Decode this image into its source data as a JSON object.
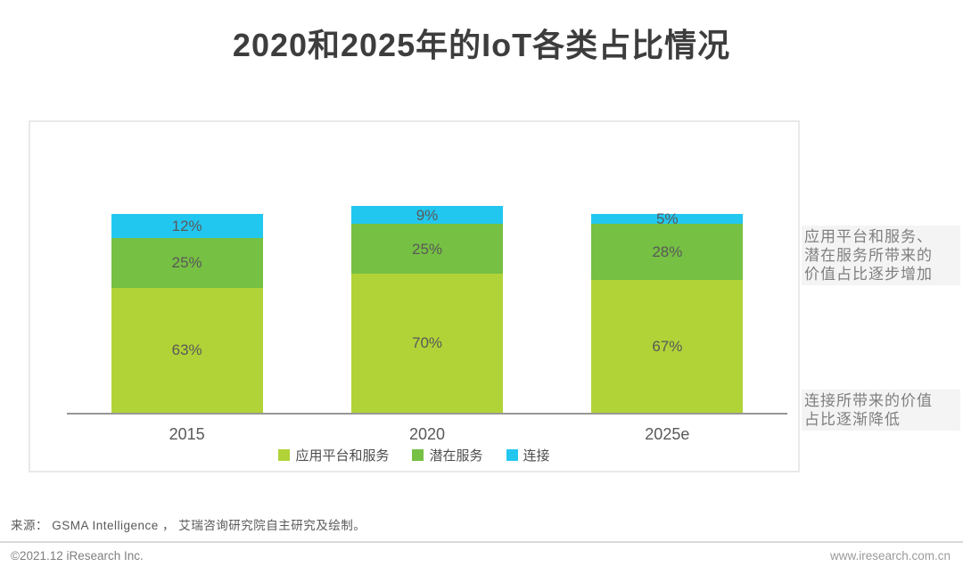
{
  "title": "2020和2025年的IoT各类占比情况",
  "colors": {
    "series_app_platform": "#b1d338",
    "series_latent_service": "#76c043",
    "series_connection": "#22c7f0",
    "title_text": "#3d3d3d",
    "label_text": "#595959",
    "annotation_bg": "#f4f4f4",
    "annotation_text": "#7f7f7f",
    "axis_line": "#979797",
    "frame_border": "#e9e9e9"
  },
  "chart_data": {
    "type": "bar",
    "stacked": true,
    "categories": [
      "2015",
      "2020",
      "2025e"
    ],
    "series": [
      {
        "name": "应用平台和服务",
        "color": "#b1d338",
        "values": [
          63,
          70,
          67
        ]
      },
      {
        "name": "潜在服务",
        "color": "#76c043",
        "values": [
          25,
          25,
          28
        ]
      },
      {
        "name": "连接",
        "color": "#22c7f0",
        "values": [
          12,
          9,
          5
        ]
      }
    ],
    "value_suffix": "%",
    "title": "2020和2025年的IoT各类占比情况",
    "xlabel": "",
    "ylabel": "",
    "ylim": [
      0,
      110
    ],
    "grid": false,
    "legend_position": "bottom",
    "value_labels_shown": true
  },
  "annotations": [
    {
      "text": "应用平台和服务、\n潜在服务所带来的\n价值占比逐步增加"
    },
    {
      "text": "连接所带来的价值\n占比逐渐降低"
    }
  ],
  "source_line": "来源：  GSMA Intelligence ，  艾瑞咨询研究院自主研究及绘制。",
  "footer": {
    "left": "©2021.12 iResearch Inc.",
    "right": "www.iresearch.com.cn"
  }
}
